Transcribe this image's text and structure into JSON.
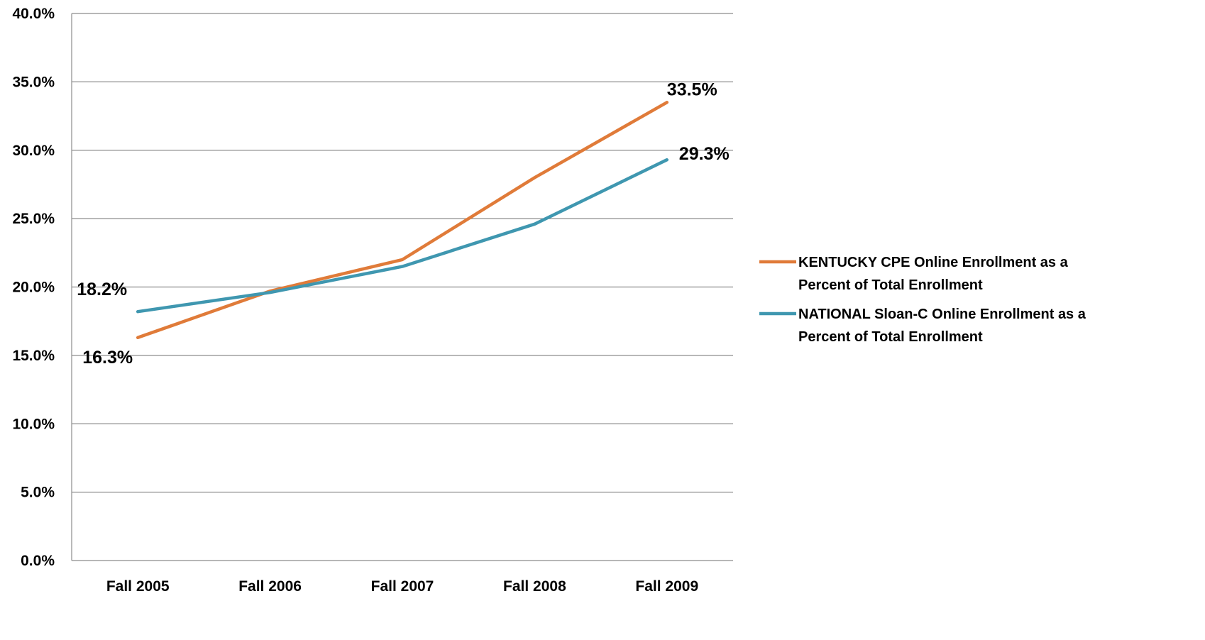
{
  "chart_data": {
    "type": "line",
    "categories": [
      "Fall 2005",
      "Fall 2006",
      "Fall 2007",
      "Fall 2008",
      "Fall 2009"
    ],
    "ylim": [
      0,
      40
    ],
    "yticks": [
      "0.0%",
      "5.0%",
      "10.0%",
      "15.0%",
      "20.0%",
      "25.0%",
      "30.0%",
      "35.0%",
      "40.0%"
    ],
    "grid": true,
    "legend_position": "right",
    "series": [
      {
        "name_lines": [
          "KENTUCKY CPE Online Enrollment as a",
          "Percent of Total Enrollment"
        ],
        "color": "#E07B39",
        "values": [
          16.3,
          19.7,
          22.0,
          28.0,
          33.5
        ],
        "data_labels": [
          {
            "index": 0,
            "text": "16.3%"
          },
          {
            "index": 4,
            "text": "33.5%"
          }
        ]
      },
      {
        "name_lines": [
          "NATIONAL Sloan-C Online Enrollment as a",
          "Percent of Total Enrollment"
        ],
        "color": "#3F97B0",
        "values": [
          18.2,
          19.6,
          21.5,
          24.6,
          29.3
        ],
        "data_labels": [
          {
            "index": 0,
            "text": "18.2%"
          },
          {
            "index": 4,
            "text": "29.3%"
          }
        ]
      }
    ]
  }
}
